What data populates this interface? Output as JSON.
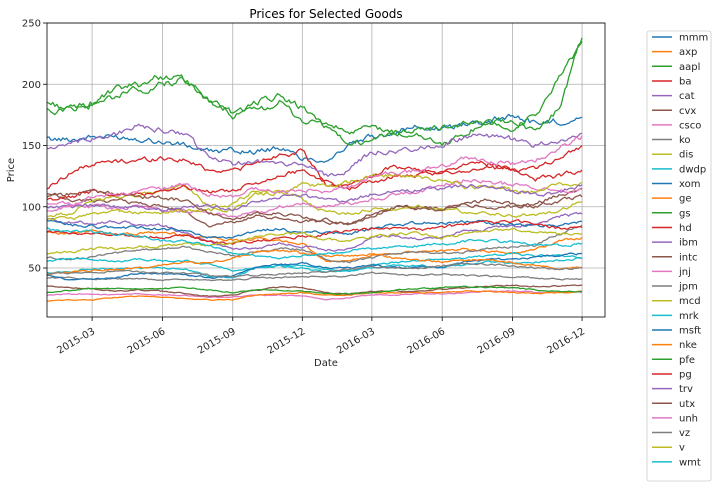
{
  "chart_data": {
    "type": "line",
    "title": "Prices for Selected Goods",
    "xlabel": "Date",
    "ylabel": "Price",
    "xlim": [
      "2015-01-01",
      "2016-12-31"
    ],
    "ylim": [
      10,
      250
    ],
    "yticks": [
      50,
      100,
      150,
      200,
      250
    ],
    "xticks": [
      "2015-03",
      "2015-06",
      "2015-09",
      "2015-12",
      "2016-03",
      "2016-06",
      "2016-09",
      "2016-12"
    ],
    "grid": true,
    "legend_position": "outside-right",
    "x": [
      "2015-01",
      "2015-02",
      "2015-03",
      "2015-04",
      "2015-05",
      "2015-06",
      "2015-07",
      "2015-08",
      "2015-09",
      "2015-10",
      "2015-11",
      "2015-12",
      "2016-01",
      "2016-02",
      "2016-03",
      "2016-04",
      "2016-05",
      "2016-06",
      "2016-07",
      "2016-08",
      "2016-09",
      "2016-10",
      "2016-11",
      "2016-12"
    ],
    "series": [
      {
        "name": "mmm",
        "color": "#1f77b4",
        "values": [
          155,
          155,
          157,
          157,
          156,
          153,
          150,
          145,
          146,
          145,
          148,
          140,
          138,
          150,
          157,
          162,
          165,
          163,
          168,
          170,
          175,
          168,
          170,
          173
        ]
      },
      {
        "name": "axp",
        "color": "#ff7f0e",
        "values": [
          80,
          78,
          80,
          78,
          78,
          79,
          77,
          75,
          73,
          74,
          72,
          70,
          55,
          56,
          60,
          62,
          63,
          64,
          65,
          64,
          62,
          65,
          72,
          75
        ]
      },
      {
        "name": "aapl",
        "color": "#2ca02c",
        "values": [
          185,
          180,
          185,
          195,
          200,
          207,
          203,
          185,
          175,
          178,
          185,
          170,
          168,
          160,
          165,
          160,
          163,
          165,
          167,
          170,
          170,
          162,
          180,
          238
        ]
      },
      {
        "name": "ba",
        "color": "#d62728",
        "values": [
          115,
          128,
          135,
          137,
          138,
          140,
          138,
          130,
          130,
          135,
          143,
          145,
          118,
          115,
          120,
          125,
          125,
          127,
          130,
          132,
          130,
          132,
          140,
          150
        ]
      },
      {
        "name": "cat",
        "color": "#9467bd",
        "values": [
          90,
          87,
          87,
          88,
          85,
          85,
          78,
          72,
          66,
          66,
          70,
          68,
          65,
          65,
          75,
          76,
          74,
          75,
          80,
          82,
          85,
          85,
          92,
          94
        ]
      },
      {
        "name": "cvx",
        "color": "#8c564b",
        "values": [
          110,
          105,
          105,
          105,
          103,
          100,
          96,
          85,
          88,
          92,
          90,
          88,
          90,
          85,
          92,
          100,
          100,
          98,
          102,
          100,
          100,
          102,
          110,
          115
        ]
      },
      {
        "name": "csco",
        "color": "#e377c2",
        "values": [
          28,
          29,
          29,
          28,
          29,
          28,
          28,
          26,
          26,
          28,
          28,
          27,
          24,
          26,
          28,
          28,
          29,
          29,
          30,
          31,
          31,
          30,
          30,
          30
        ]
      },
      {
        "name": "ko",
        "color": "#7f7f7f",
        "values": [
          42,
          42,
          41,
          41,
          41,
          40,
          41,
          40,
          40,
          42,
          42,
          43,
          43,
          44,
          46,
          45,
          44,
          45,
          44,
          43,
          43,
          42,
          41,
          41
        ]
      },
      {
        "name": "dis",
        "color": "#bcbd22",
        "values": [
          92,
          95,
          105,
          108,
          110,
          113,
          117,
          100,
          102,
          113,
          113,
          106,
          95,
          95,
          98,
          98,
          100,
          98,
          96,
          95,
          93,
          93,
          97,
          104
        ]
      },
      {
        "name": "dwdp",
        "color": "#17becf",
        "values": [
          46,
          47,
          50,
          49,
          50,
          50,
          49,
          43,
          42,
          50,
          52,
          50,
          46,
          48,
          50,
          52,
          52,
          51,
          53,
          55,
          54,
          55,
          56,
          58
        ]
      },
      {
        "name": "xom",
        "color": "#1f77b4",
        "values": [
          88,
          85,
          84,
          83,
          83,
          82,
          80,
          75,
          74,
          80,
          82,
          78,
          80,
          78,
          82,
          85,
          87,
          87,
          88,
          87,
          86,
          84,
          85,
          88
        ]
      },
      {
        "name": "ge",
        "color": "#ff7f0e",
        "values": [
          23,
          24,
          24,
          26,
          27,
          26,
          25,
          24,
          24,
          28,
          29,
          30,
          28,
          28,
          30,
          30,
          30,
          30,
          31,
          31,
          30,
          29,
          30,
          31
        ]
      },
      {
        "name": "gs",
        "color": "#2ca02c",
        "values": [
          178,
          180,
          183,
          190,
          195,
          200,
          203,
          185,
          177,
          185,
          190,
          180,
          165,
          150,
          155,
          160,
          158,
          150,
          160,
          170,
          165,
          175,
          205,
          235
        ]
      },
      {
        "name": "hd",
        "color": "#d62728",
        "values": [
          105,
          108,
          113,
          110,
          110,
          112,
          115,
          113,
          113,
          120,
          125,
          130,
          120,
          118,
          125,
          133,
          130,
          127,
          135,
          135,
          130,
          123,
          125,
          130
        ]
      },
      {
        "name": "ibm",
        "color": "#9467bd",
        "values": [
          148,
          150,
          155,
          160,
          165,
          162,
          160,
          140,
          135,
          138,
          135,
          135,
          125,
          130,
          145,
          145,
          148,
          150,
          157,
          158,
          155,
          150,
          155,
          160
        ]
      },
      {
        "name": "intc",
        "color": "#8c564b",
        "values": [
          35,
          34,
          33,
          31,
          32,
          31,
          29,
          27,
          28,
          32,
          34,
          34,
          30,
          29,
          31,
          31,
          31,
          33,
          34,
          35,
          36,
          35,
          35,
          36
        ]
      },
      {
        "name": "jnj",
        "color": "#e377c2",
        "values": [
          103,
          102,
          100,
          99,
          100,
          98,
          97,
          95,
          92,
          95,
          100,
          102,
          100,
          103,
          106,
          110,
          112,
          118,
          122,
          120,
          118,
          115,
          112,
          114
        ]
      },
      {
        "name": "jpm",
        "color": "#7f7f7f",
        "values": [
          58,
          57,
          59,
          62,
          64,
          66,
          67,
          63,
          60,
          63,
          66,
          65,
          57,
          55,
          58,
          62,
          64,
          62,
          63,
          66,
          67,
          68,
          78,
          85
        ]
      },
      {
        "name": "mcd",
        "color": "#bcbd22",
        "values": [
          90,
          90,
          95,
          96,
          95,
          95,
          97,
          97,
          98,
          110,
          112,
          118,
          118,
          120,
          125,
          126,
          124,
          122,
          117,
          115,
          114,
          112,
          118,
          120
        ]
      },
      {
        "name": "mrk",
        "color": "#17becf",
        "values": [
          55,
          58,
          57,
          55,
          57,
          56,
          56,
          53,
          48,
          50,
          52,
          52,
          48,
          48,
          52,
          55,
          56,
          57,
          58,
          60,
          62,
          60,
          60,
          58
        ]
      },
      {
        "name": "msft",
        "color": "#1f77b4",
        "values": [
          44,
          40,
          41,
          42,
          46,
          45,
          45,
          42,
          43,
          50,
          53,
          54,
          50,
          50,
          53,
          50,
          51,
          51,
          55,
          57,
          57,
          59,
          60,
          62
        ]
      },
      {
        "name": "nke",
        "color": "#ff7f0e",
        "values": [
          45,
          47,
          48,
          49,
          50,
          52,
          55,
          54,
          58,
          63,
          65,
          62,
          60,
          60,
          61,
          58,
          56,
          55,
          56,
          57,
          55,
          52,
          50,
          51
        ]
      },
      {
        "name": "pfe",
        "color": "#2ca02c",
        "values": [
          30,
          32,
          33,
          33,
          33,
          33,
          34,
          32,
          30,
          32,
          32,
          31,
          29,
          29,
          30,
          32,
          33,
          34,
          35,
          34,
          34,
          32,
          31,
          31
        ]
      },
      {
        "name": "pg",
        "color": "#d62728",
        "values": [
          80,
          78,
          78,
          77,
          76,
          75,
          77,
          72,
          70,
          72,
          74,
          76,
          78,
          80,
          82,
          82,
          81,
          83,
          86,
          87,
          88,
          87,
          82,
          83
        ]
      },
      {
        "name": "trv",
        "color": "#9467bd",
        "values": [
          100,
          100,
          102,
          100,
          100,
          97,
          100,
          100,
          98,
          104,
          108,
          110,
          105,
          105,
          110,
          112,
          113,
          115,
          117,
          115,
          113,
          110,
          112,
          118
        ]
      },
      {
        "name": "utx",
        "color": "#8c564b",
        "values": [
          108,
          110,
          113,
          110,
          108,
          107,
          105,
          95,
          88,
          95,
          95,
          92,
          86,
          87,
          95,
          100,
          98,
          97,
          102,
          106,
          102,
          100,
          105,
          108
        ]
      },
      {
        "name": "unh",
        "color": "#e377c2",
        "values": [
          98,
          100,
          108,
          110,
          112,
          115,
          118,
          110,
          108,
          115,
          112,
          115,
          113,
          115,
          125,
          128,
          130,
          133,
          140,
          138,
          135,
          138,
          148,
          158
        ]
      },
      {
        "name": "vz",
        "color": "#7f7f7f",
        "values": [
          45,
          46,
          46,
          47,
          47,
          46,
          46,
          44,
          43,
          44,
          45,
          46,
          47,
          49,
          51,
          50,
          50,
          52,
          54,
          53,
          52,
          50,
          49,
          50
        ]
      },
      {
        "name": "v",
        "color": "#bcbd22",
        "values": [
          62,
          63,
          66,
          66,
          67,
          68,
          70,
          68,
          70,
          75,
          78,
          78,
          73,
          72,
          75,
          78,
          78,
          75,
          78,
          80,
          82,
          80,
          78,
          78
        ]
      },
      {
        "name": "wmt",
        "color": "#17becf",
        "values": [
          82,
          80,
          80,
          78,
          76,
          72,
          72,
          68,
          62,
          60,
          58,
          60,
          62,
          64,
          66,
          68,
          68,
          70,
          72,
          72,
          71,
          69,
          68,
          70
        ]
      }
    ]
  }
}
